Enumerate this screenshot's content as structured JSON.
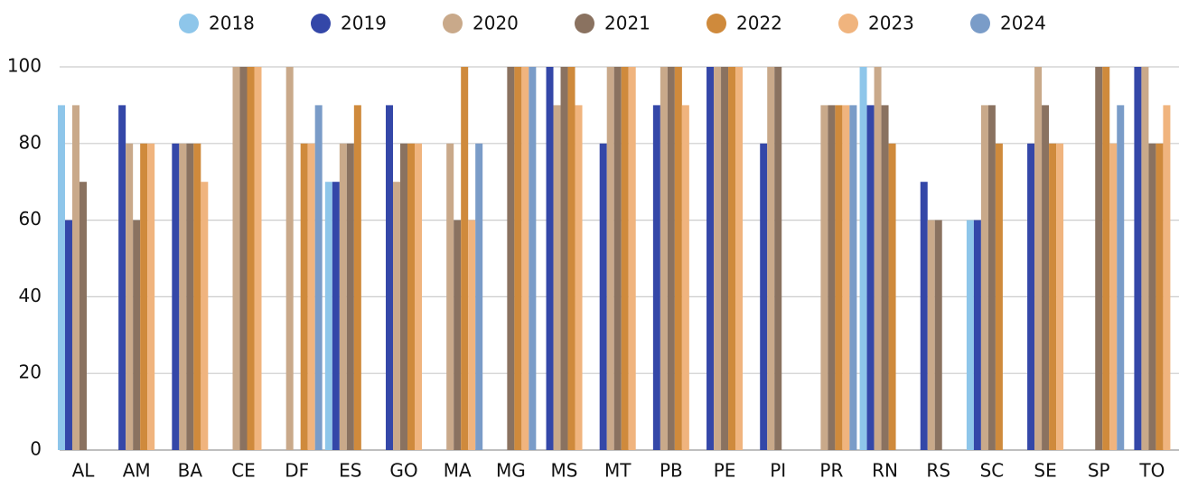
{
  "chart_data": {
    "type": "bar",
    "categories": [
      "AL",
      "AM",
      "BA",
      "CE",
      "DF",
      "ES",
      "GO",
      "MA",
      "MG",
      "MS",
      "MT",
      "PB",
      "PE",
      "PI",
      "PR",
      "RN",
      "RS",
      "SC",
      "SE",
      "SP",
      "TO"
    ],
    "series": [
      {
        "name": "2018",
        "color": "#8ec6ea",
        "values": [
          90,
          null,
          null,
          null,
          null,
          70,
          null,
          null,
          null,
          null,
          null,
          null,
          null,
          null,
          null,
          100,
          null,
          60,
          null,
          null,
          null
        ]
      },
      {
        "name": "2019",
        "color": "#3447a8",
        "values": [
          60,
          90,
          80,
          null,
          null,
          70,
          90,
          null,
          null,
          100,
          80,
          90,
          100,
          80,
          null,
          90,
          70,
          60,
          80,
          null,
          100
        ]
      },
      {
        "name": "2020",
        "color": "#c9a98a",
        "values": [
          90,
          80,
          80,
          100,
          100,
          80,
          70,
          80,
          null,
          90,
          100,
          100,
          100,
          100,
          90,
          100,
          60,
          90,
          100,
          null,
          100
        ]
      },
      {
        "name": "2021",
        "color": "#8a7260",
        "values": [
          70,
          60,
          80,
          100,
          null,
          80,
          80,
          60,
          100,
          100,
          100,
          100,
          100,
          100,
          90,
          90,
          60,
          90,
          90,
          100,
          80
        ]
      },
      {
        "name": "2022",
        "color": "#cf8a3c",
        "values": [
          null,
          80,
          80,
          100,
          80,
          90,
          80,
          100,
          100,
          100,
          100,
          100,
          100,
          null,
          90,
          80,
          null,
          80,
          80,
          100,
          80
        ]
      },
      {
        "name": "2023",
        "color": "#f0b47e",
        "values": [
          null,
          80,
          70,
          100,
          80,
          null,
          80,
          60,
          100,
          90,
          100,
          90,
          100,
          null,
          90,
          null,
          null,
          null,
          80,
          80,
          90
        ]
      },
      {
        "name": "2024",
        "color": "#7a9cc8",
        "values": [
          null,
          null,
          null,
          null,
          90,
          null,
          null,
          80,
          100,
          null,
          null,
          null,
          null,
          null,
          90,
          null,
          null,
          null,
          null,
          90,
          null
        ]
      }
    ],
    "ylim": [
      0,
      100
    ],
    "yticks": [
      0,
      20,
      40,
      60,
      80,
      100
    ],
    "grid": true,
    "legend": "top"
  }
}
